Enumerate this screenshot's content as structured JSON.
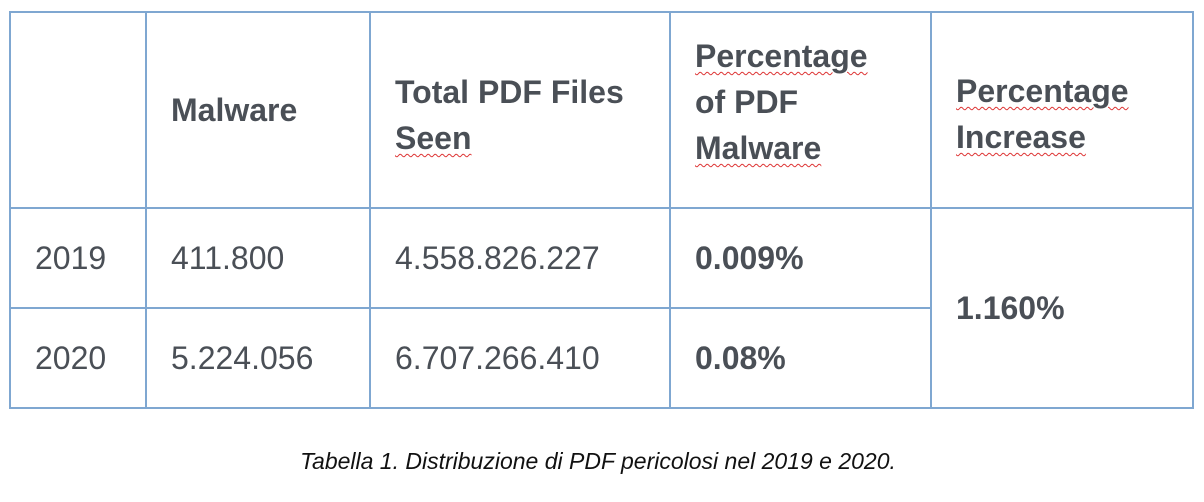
{
  "table": {
    "headers": {
      "year": "",
      "malware": "Malware",
      "total_line1": "Total PDF Files",
      "total_line2": "Seen",
      "pct_line1": "Percentage",
      "pct_line2": "of PDF",
      "pct_line3": "Malware",
      "inc_line1": "Percentage",
      "inc_line2": "Increase"
    },
    "rows": [
      {
        "year": "2019",
        "malware": "411.800",
        "total": "4.558.826.227",
        "percentage": "0.009%"
      },
      {
        "year": "2020",
        "malware": "5.224.056",
        "total": "6.707.266.410",
        "percentage": "0.08%"
      }
    ],
    "increase": "1.160%"
  },
  "caption": "Tabella 1. Distribuzione di PDF pericolosi nel 2019 e 2020."
}
